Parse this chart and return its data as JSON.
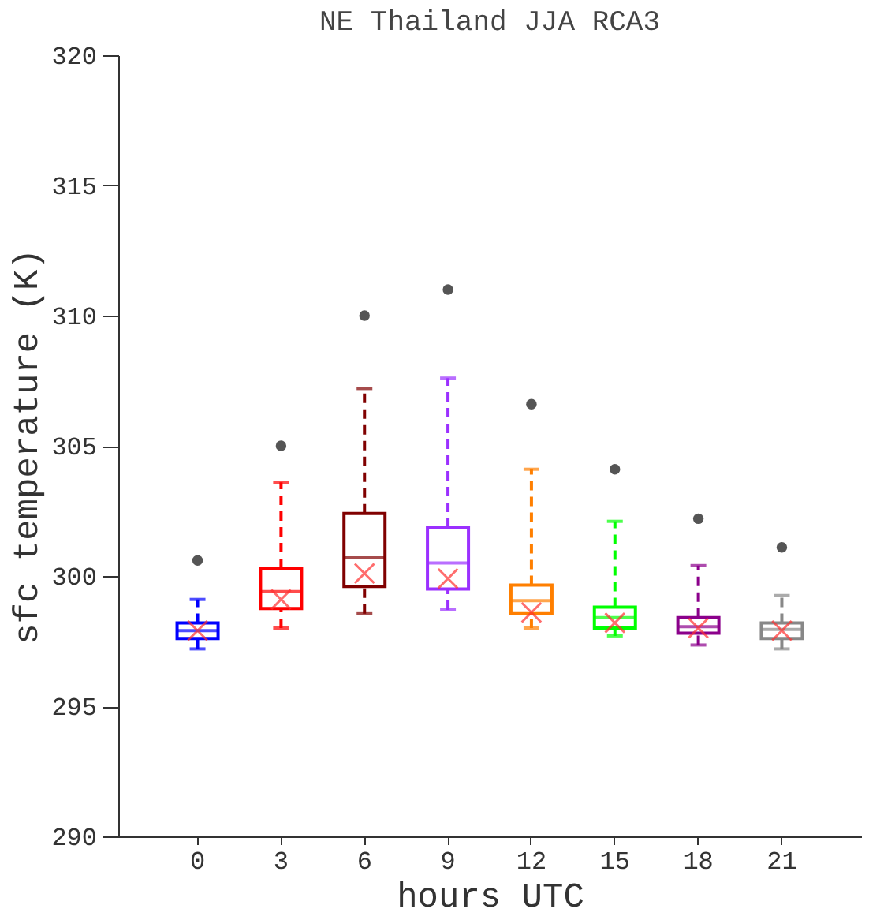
{
  "chart_data": {
    "type": "box",
    "title": "NE Thailand JJA RCA3",
    "xlabel": "hours UTC",
    "ylabel": "sfc temperature (K)",
    "categories": [
      "0",
      "3",
      "6",
      "9",
      "12",
      "15",
      "18",
      "21"
    ],
    "colors": [
      "#0000ff",
      "#ff0000",
      "#800000",
      "#9b30ff",
      "#ff7f00",
      "#00ff00",
      "#8b008b",
      "#888888"
    ],
    "boxes": [
      {
        "low": 297.2,
        "q1": 297.6,
        "median": 297.9,
        "q3": 298.2,
        "high": 299.1,
        "mean": 297.9,
        "outliers": [
          300.6
        ]
      },
      {
        "low": 298.0,
        "q1": 298.75,
        "median": 299.4,
        "q3": 300.3,
        "high": 303.6,
        "mean": 299.1,
        "outliers": [
          305.0
        ]
      },
      {
        "low": 298.55,
        "q1": 299.6,
        "median": 300.7,
        "q3": 302.4,
        "high": 307.2,
        "mean": 300.1,
        "outliers": [
          310.0
        ]
      },
      {
        "low": 298.7,
        "q1": 299.5,
        "median": 300.5,
        "q3": 301.85,
        "high": 307.6,
        "mean": 299.9,
        "outliers": [
          311.0
        ]
      },
      {
        "low": 298.0,
        "q1": 298.55,
        "median": 299.05,
        "q3": 299.65,
        "high": 304.1,
        "mean": 298.6,
        "outliers": [
          306.6
        ]
      },
      {
        "low": 297.7,
        "q1": 298.0,
        "median": 298.4,
        "q3": 298.8,
        "high": 302.1,
        "mean": 298.2,
        "outliers": [
          304.1
        ]
      },
      {
        "low": 297.35,
        "q1": 297.8,
        "median": 298.05,
        "q3": 298.4,
        "high": 300.4,
        "mean": 298.0,
        "outliers": [
          302.2
        ]
      },
      {
        "low": 297.2,
        "q1": 297.6,
        "median": 297.95,
        "q3": 298.2,
        "high": 299.25,
        "mean": 297.9,
        "outliers": [
          301.1
        ]
      }
    ],
    "ylim": [
      290,
      320
    ],
    "yticks": [
      290,
      295,
      300,
      305,
      310,
      315,
      320
    ],
    "grid": false
  }
}
